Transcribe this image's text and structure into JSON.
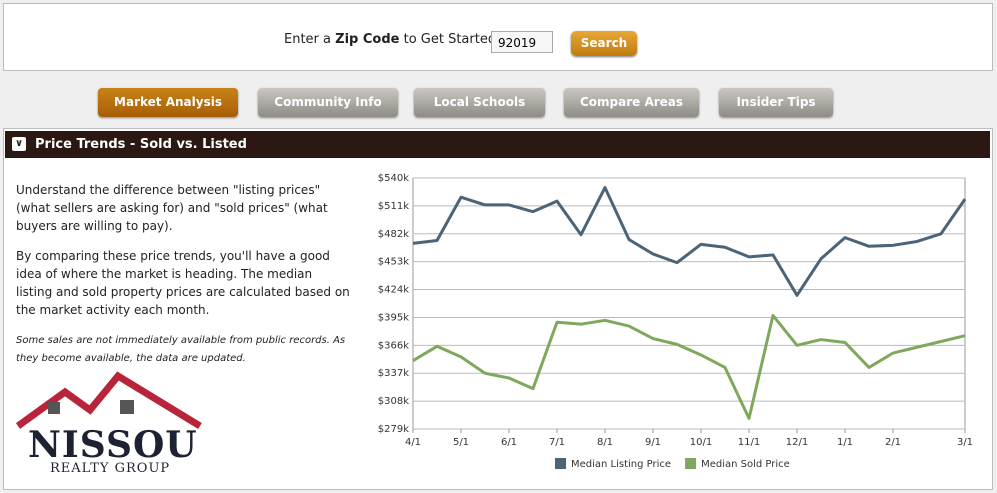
{
  "search": {
    "prompt_before": "Enter a",
    "prompt_bold": "Zip Code",
    "prompt_after": "to Get Started",
    "zip_value": "92019",
    "button": "Search"
  },
  "tabs": [
    "Market Analysis",
    "Community Info",
    "Local Schools",
    "Compare Areas",
    "Insider Tips"
  ],
  "section": {
    "title": "Price Trends - Sold vs. Listed",
    "paragraphs": [
      "Understand the difference between \"listing prices\" (what sellers are asking for) and \"sold prices\" (what buyers are willing to pay).",
      "By comparing these price trends, you'll have a good idea of where the market is heading. The median listing and sold property prices are calculated based on the market activity each month."
    ],
    "note": "Some sales are not immediately available from public records. As they become available, the data are updated."
  },
  "logo": {
    "name": "NISSOU",
    "tagline": "REALTY GROUP"
  },
  "chart_data": {
    "type": "line",
    "categories": [
      "4/1",
      null,
      "5/1",
      null,
      "6/1",
      null,
      "7/1",
      null,
      "8/1",
      null,
      "9/1",
      null,
      "10/1",
      null,
      "11/1",
      null,
      "12/1",
      null,
      "1/1",
      null,
      "2/1",
      null,
      null,
      "3/1"
    ],
    "series": [
      {
        "name": "Median Listing Price",
        "color": "#4b6478",
        "values": [
          472,
          475,
          520,
          512,
          512,
          505,
          516,
          481,
          530,
          476,
          461,
          452,
          471,
          468,
          458,
          460,
          418,
          456,
          478,
          469,
          470,
          474,
          482,
          518
        ]
      },
      {
        "name": "Median Sold Price",
        "color": "#80a85c",
        "values": [
          350,
          365,
          354,
          337,
          332,
          321,
          390,
          388,
          392,
          386,
          373,
          367,
          356,
          343,
          290,
          397,
          366,
          372,
          369,
          343,
          358,
          364,
          370,
          376
        ]
      }
    ],
    "ylim": [
      279,
      540
    ],
    "yticks": [
      {
        "value": 279,
        "label": "$279k"
      },
      {
        "value": 308,
        "label": "$308k"
      },
      {
        "value": 337,
        "label": "$337k"
      },
      {
        "value": 366,
        "label": "$366k"
      },
      {
        "value": 395,
        "label": "$395k"
      },
      {
        "value": 424,
        "label": "$424k"
      },
      {
        "value": 453,
        "label": "$453k"
      },
      {
        "value": 482,
        "label": "$482k"
      },
      {
        "value": 511,
        "label": "$511k"
      },
      {
        "value": 540,
        "label": "$540k"
      }
    ],
    "grid": true,
    "legend": "bottom"
  }
}
